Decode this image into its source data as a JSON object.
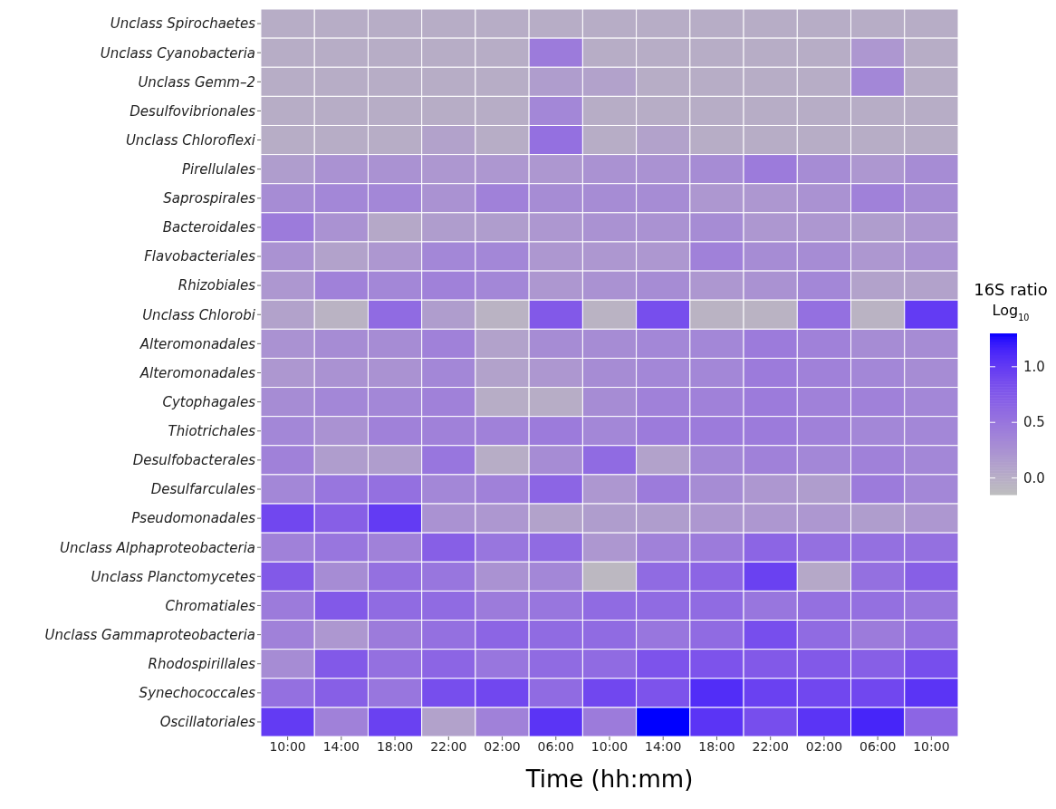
{
  "chart_data": {
    "type": "heatmap",
    "xlabel": "Time (hh:mm)",
    "clabel": "16S ratio\nLog$_{10}$",
    "categories": [
      "10:00",
      "14:00",
      "18:00",
      "22:00",
      "02:00",
      "06:00",
      "10:00",
      "14:00",
      "18:00",
      "22:00",
      "02:00",
      "06:00",
      "10:00"
    ],
    "y_categories": [
      "Unclass  Spirochaetes",
      "Unclass  Cyanobacteria",
      "Unclass  Gemm–2",
      "Desulfovibrionales",
      "Unclass  Chloroflexi",
      "Pirellulales",
      "Saprospirales",
      "Bacteroidales",
      "Flavobacteriales",
      "Rhizobiales",
      "Unclass  Chlorobi",
      "Alteromonadales",
      "Alteromonadales",
      "Cytophagales",
      "Thiotrichales",
      "Desulfobacterales",
      "Desulfarculales",
      "Pseudomonadales",
      "Unclass  Alphaproteobacteria",
      "Unclass  Planctomycetes",
      "Chromatiales",
      "Unclass  Gammaproteobacteria",
      "Rhodospirillales",
      "Synechococcales",
      "Oscillatoriales"
    ],
    "cells": [
      [
        0,
        0,
        0,
        0,
        0,
        0,
        0,
        0,
        0,
        0,
        0,
        0,
        0
      ],
      [
        0,
        0,
        0,
        0,
        0,
        0.45,
        0,
        0,
        0,
        0,
        0,
        0.2,
        0
      ],
      [
        0,
        0,
        0,
        0,
        0,
        0.15,
        0.1,
        0,
        0,
        0,
        0,
        0.35,
        0
      ],
      [
        0,
        0,
        0,
        0,
        0,
        0.35,
        0,
        0,
        0,
        0,
        0,
        0,
        0
      ],
      [
        0,
        0,
        0,
        0.1,
        0,
        0.55,
        0,
        0.1,
        0,
        0,
        0,
        0,
        0
      ],
      [
        0.15,
        0.25,
        0.25,
        0.2,
        0.2,
        0.2,
        0.25,
        0.25,
        0.3,
        0.45,
        0.3,
        0.2,
        0.3
      ],
      [
        0.3,
        0.35,
        0.35,
        0.25,
        0.4,
        0.3,
        0.3,
        0.3,
        0.2,
        0.2,
        0.25,
        0.4,
        0.3
      ],
      [
        0.45,
        0.25,
        0.05,
        0.15,
        0.15,
        0.2,
        0.25,
        0.25,
        0.3,
        0.2,
        0.2,
        0.15,
        0.2
      ],
      [
        0.25,
        0.1,
        0.2,
        0.35,
        0.35,
        0.2,
        0.2,
        0.2,
        0.4,
        0.3,
        0.3,
        0.2,
        0.25
      ],
      [
        0.2,
        0.4,
        0.35,
        0.4,
        0.35,
        0.2,
        0.25,
        0.3,
        0.2,
        0.25,
        0.35,
        0.1,
        0.1
      ],
      [
        0.1,
        -0.05,
        0.6,
        0.15,
        -0.05,
        0.75,
        -0.05,
        0.85,
        -0.05,
        -0.05,
        0.55,
        -0.05,
        1.0
      ],
      [
        0.25,
        0.3,
        0.3,
        0.4,
        0.1,
        0.3,
        0.3,
        0.35,
        0.35,
        0.45,
        0.4,
        0.3,
        0.3
      ],
      [
        0.2,
        0.25,
        0.25,
        0.35,
        0.1,
        0.2,
        0.3,
        0.35,
        0.35,
        0.45,
        0.4,
        0.35,
        0.3
      ],
      [
        0.3,
        0.35,
        0.35,
        0.4,
        0,
        0,
        0.3,
        0.4,
        0.4,
        0.45,
        0.4,
        0.4,
        0.35
      ],
      [
        0.35,
        0.25,
        0.4,
        0.4,
        0.4,
        0.45,
        0.35,
        0.45,
        0.45,
        0.45,
        0.4,
        0.35,
        0.35
      ],
      [
        0.4,
        0.15,
        0.15,
        0.5,
        0,
        0.3,
        0.6,
        0.1,
        0.35,
        0.4,
        0.35,
        0.4,
        0.35
      ],
      [
        0.35,
        0.5,
        0.55,
        0.35,
        0.4,
        0.65,
        0.2,
        0.45,
        0.3,
        0.2,
        0.15,
        0.45,
        0.35
      ],
      [
        0.9,
        0.7,
        1.0,
        0.25,
        0.2,
        0.1,
        0.15,
        0.15,
        0.2,
        0.2,
        0.2,
        0.15,
        0.2
      ],
      [
        0.4,
        0.5,
        0.4,
        0.7,
        0.5,
        0.6,
        0.2,
        0.4,
        0.45,
        0.65,
        0.55,
        0.55,
        0.55
      ],
      [
        0.75,
        0.3,
        0.55,
        0.5,
        0.25,
        0.35,
        -0.1,
        0.6,
        0.65,
        0.95,
        0.05,
        0.55,
        0.7
      ],
      [
        0.45,
        0.75,
        0.6,
        0.6,
        0.45,
        0.5,
        0.6,
        0.6,
        0.6,
        0.5,
        0.55,
        0.55,
        0.5
      ],
      [
        0.4,
        0.2,
        0.45,
        0.55,
        0.65,
        0.6,
        0.6,
        0.5,
        0.6,
        0.85,
        0.6,
        0.45,
        0.55
      ],
      [
        0.3,
        0.75,
        0.55,
        0.65,
        0.5,
        0.6,
        0.6,
        0.8,
        0.8,
        0.75,
        0.75,
        0.7,
        0.85
      ],
      [
        0.55,
        0.7,
        0.5,
        0.85,
        0.9,
        0.6,
        0.9,
        0.8,
        1.1,
        0.95,
        0.9,
        0.9,
        1.05
      ],
      [
        1.0,
        0.4,
        0.95,
        0.1,
        0.4,
        1.05,
        0.45,
        1.3,
        1.05,
        0.85,
        1.05,
        1.15,
        0.65
      ]
    ],
    "clim": [
      -0.15,
      1.3
    ],
    "cticks": [
      {
        "value": 0,
        "label": "0.0"
      },
      {
        "value": 0.5,
        "label": "0.5"
      },
      {
        "value": 1,
        "label": "1.0"
      }
    ]
  }
}
